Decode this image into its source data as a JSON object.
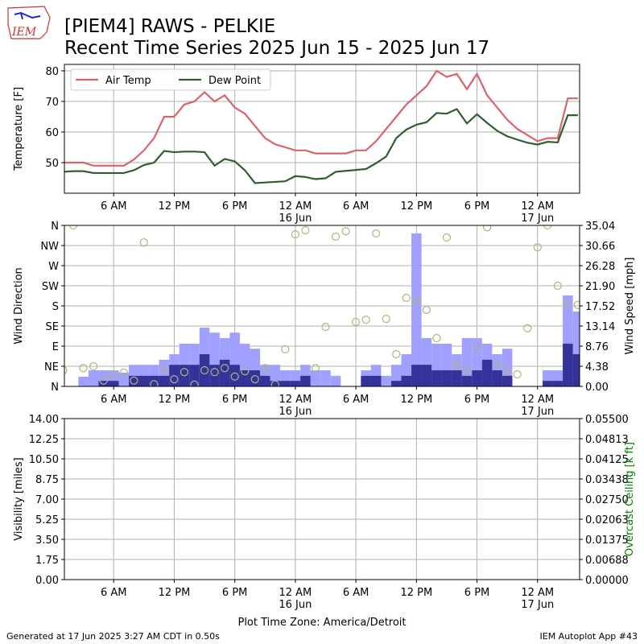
{
  "header": {
    "title": "[PIEM4] RAWS - PELKIE",
    "subtitle": "Recent Time Series 2025 Jun 15 - 2025 Jun 17",
    "logo_text": "IEM"
  },
  "footer": {
    "left": "Generated at 17 Jun 2025 3:27 AM CDT in 0.50s",
    "right": "IEM Autoplot App #43"
  },
  "chart_data": [
    {
      "type": "line",
      "ylabel": "Temperature [F]",
      "x": [
        "2025-06-15T01:00",
        "2025-06-15T02:00",
        "2025-06-15T03:00",
        "2025-06-15T04:00",
        "2025-06-15T05:00",
        "2025-06-15T06:00",
        "2025-06-15T07:00",
        "2025-06-15T08:00",
        "2025-06-15T09:00",
        "2025-06-15T10:00",
        "2025-06-15T11:00",
        "2025-06-15T12:00",
        "2025-06-15T13:00",
        "2025-06-15T14:00",
        "2025-06-15T15:00",
        "2025-06-15T16:00",
        "2025-06-15T17:00",
        "2025-06-15T18:00",
        "2025-06-15T19:00",
        "2025-06-15T20:00",
        "2025-06-15T21:00",
        "2025-06-15T22:00",
        "2025-06-15T23:00",
        "2025-06-16T00:00",
        "2025-06-16T01:00",
        "2025-06-16T02:00",
        "2025-06-16T03:00",
        "2025-06-16T04:00",
        "2025-06-16T05:00",
        "2025-06-16T06:00",
        "2025-06-16T07:00",
        "2025-06-16T08:00",
        "2025-06-16T09:00",
        "2025-06-16T10:00",
        "2025-06-16T11:00",
        "2025-06-16T12:00",
        "2025-06-16T13:00",
        "2025-06-16T14:00",
        "2025-06-16T15:00",
        "2025-06-16T16:00",
        "2025-06-16T17:00",
        "2025-06-16T18:00",
        "2025-06-16T19:00",
        "2025-06-16T20:00",
        "2025-06-16T21:00",
        "2025-06-16T22:00",
        "2025-06-16T23:00",
        "2025-06-17T00:00",
        "2025-06-17T01:00",
        "2025-06-17T02:00",
        "2025-06-17T03:00",
        "2025-06-17T04:00"
      ],
      "series": [
        {
          "name": "Air Temp",
          "color": "#d9636b",
          "values": [
            50,
            50,
            50,
            49,
            49,
            49,
            49,
            51,
            54,
            58,
            65,
            65,
            69,
            70,
            73,
            70,
            72,
            68,
            66,
            62,
            58,
            56,
            55,
            54,
            54,
            53,
            53,
            53,
            53,
            54,
            54,
            57,
            61,
            65,
            69,
            72,
            75,
            80,
            78,
            79,
            74,
            79,
            72,
            68,
            64,
            61,
            59,
            57,
            58,
            58,
            71,
            71
          ]
        },
        {
          "name": "Dew Point",
          "color": "#2f5e2f",
          "values": [
            47,
            47.2,
            47.2,
            46.6,
            46.6,
            46.6,
            46.6,
            47.5,
            49.2,
            50,
            53.8,
            53.4,
            53.6,
            53.6,
            53.4,
            49,
            51.2,
            50.4,
            47.5,
            43.3,
            43.5,
            43.7,
            43.9,
            45.6,
            45.3,
            44.6,
            44.9,
            47,
            47.3,
            47.6,
            47.9,
            49.8,
            52,
            58,
            60.8,
            62.4,
            63.2,
            66.2,
            66,
            67.5,
            62.8,
            65.8,
            63,
            60.4,
            58.6,
            57.5,
            56.5,
            55.9,
            56.8,
            56.6,
            65.5,
            65.5
          ]
        }
      ],
      "xlim": [
        "2025-06-15T01:07",
        "2025-06-17T04:10"
      ],
      "xticks": [
        {
          "value": "2025-06-15T06:00",
          "label": "6 AM"
        },
        {
          "value": "2025-06-15T12:00",
          "label": "12 PM"
        },
        {
          "value": "2025-06-15T18:00",
          "label": "6 PM"
        },
        {
          "value": "2025-06-16T00:00",
          "label": "12 AM\n16 Jun"
        },
        {
          "value": "2025-06-16T06:00",
          "label": "6 AM"
        },
        {
          "value": "2025-06-16T12:00",
          "label": "12 PM"
        },
        {
          "value": "2025-06-16T18:00",
          "label": "6 PM"
        },
        {
          "value": "2025-06-17T00:00",
          "label": "12 AM\n17 Jun"
        }
      ],
      "ylim": [
        40,
        82.1
      ],
      "yticks": [
        50,
        60,
        70,
        80
      ],
      "grid": true,
      "legend": "upper left"
    },
    {
      "type": "bar",
      "ylabel": "Wind Direction",
      "y2label": "Wind Speed [mph]",
      "x": [
        "2025-06-15T01:00",
        "2025-06-15T02:00",
        "2025-06-15T03:00",
        "2025-06-15T04:00",
        "2025-06-15T05:00",
        "2025-06-15T06:00",
        "2025-06-15T07:00",
        "2025-06-15T08:00",
        "2025-06-15T09:00",
        "2025-06-15T10:00",
        "2025-06-15T11:00",
        "2025-06-15T12:00",
        "2025-06-15T13:00",
        "2025-06-15T14:00",
        "2025-06-15T15:00",
        "2025-06-15T16:00",
        "2025-06-15T17:00",
        "2025-06-15T18:00",
        "2025-06-15T19:00",
        "2025-06-15T20:00",
        "2025-06-15T21:00",
        "2025-06-15T22:00",
        "2025-06-15T23:00",
        "2025-06-16T00:00",
        "2025-06-16T01:00",
        "2025-06-16T02:00",
        "2025-06-16T03:00",
        "2025-06-16T04:00",
        "2025-06-16T05:00",
        "2025-06-16T06:00",
        "2025-06-16T07:00",
        "2025-06-16T08:00",
        "2025-06-16T09:00",
        "2025-06-16T10:00",
        "2025-06-16T11:00",
        "2025-06-16T12:00",
        "2025-06-16T13:00",
        "2025-06-16T14:00",
        "2025-06-16T15:00",
        "2025-06-16T16:00",
        "2025-06-16T17:00",
        "2025-06-16T18:00",
        "2025-06-16T19:00",
        "2025-06-16T20:00",
        "2025-06-16T21:00",
        "2025-06-16T22:00",
        "2025-06-16T23:00",
        "2025-06-17T00:00",
        "2025-06-17T01:00",
        "2025-06-17T02:00",
        "2025-06-17T03:00",
        "2025-06-17T04:00"
      ],
      "series": [
        {
          "type": "bar",
          "axis": "y2",
          "color": "#a0a0ff",
          "values": [
            null,
            null,
            2.1,
            3.5,
            3.5,
            3.5,
            3.0,
            4.7,
            4.7,
            4.7,
            5.8,
            7.0,
            9.3,
            9.3,
            12.8,
            11.7,
            10.5,
            11.7,
            9.3,
            8.2,
            4.7,
            4.7,
            3.5,
            3.5,
            4.7,
            3.5,
            3.5,
            2.3,
            null,
            null,
            3.5,
            4.7,
            2.3,
            4.7,
            7.0,
            33.3,
            10.5,
            9.3,
            9.3,
            7.0,
            10.5,
            10.5,
            9.3,
            7.0,
            8.2,
            null,
            null,
            null,
            3.5,
            3.5,
            19.8,
            16.3
          ]
        },
        {
          "type": "bar",
          "axis": "y2",
          "color": "#33339a",
          "values": [
            null,
            null,
            0,
            0,
            1.2,
            1.2,
            0,
            2.3,
            2.3,
            2.3,
            2.3,
            4.7,
            4.7,
            4.7,
            7.0,
            4.7,
            5.8,
            4.7,
            3.5,
            3.5,
            2.3,
            1.2,
            1.2,
            1.2,
            2.3,
            0,
            0,
            0,
            null,
            null,
            2.3,
            2.3,
            0,
            1.2,
            2.3,
            4.7,
            4.7,
            3.5,
            3.5,
            3.5,
            2.3,
            3.5,
            5.8,
            3.5,
            2.3,
            null,
            null,
            null,
            1.2,
            1.2,
            9.3,
            7.0
          ]
        },
        {
          "type": "scatter",
          "color": "#b3b37a",
          "values": [
            36,
            360,
            41,
            45,
            13,
            27,
            31,
            13,
            322,
            5,
            36,
            16,
            32,
            4,
            36,
            32,
            41,
            22,
            34,
            16,
            41,
            4,
            83,
            340,
            349,
            41,
            133,
            335,
            347,
            144,
            149,
            342,
            151,
            72,
            198,
            192,
            171,
            108,
            333,
            47,
            36,
            85,
            356,
            50,
            36,
            27,
            130,
            311,
            360,
            225,
            184,
            182
          ]
        }
      ],
      "xlim": [
        "2025-06-15T01:07",
        "2025-06-17T04:10"
      ],
      "xticks": [
        {
          "value": "2025-06-15T06:00",
          "label": "6 AM"
        },
        {
          "value": "2025-06-15T12:00",
          "label": "12 PM"
        },
        {
          "value": "2025-06-15T18:00",
          "label": "6 PM"
        },
        {
          "value": "2025-06-16T00:00",
          "label": "12 AM\n16 Jun"
        },
        {
          "value": "2025-06-16T06:00",
          "label": "6 AM"
        },
        {
          "value": "2025-06-16T12:00",
          "label": "12 PM"
        },
        {
          "value": "2025-06-16T18:00",
          "label": "6 PM"
        },
        {
          "value": "2025-06-17T00:00",
          "label": "12 AM\n17 Jun"
        }
      ],
      "ylim": [
        0,
        360
      ],
      "yticks": [
        {
          "value": 0,
          "label": "N"
        },
        {
          "value": 45,
          "label": "NE"
        },
        {
          "value": 90,
          "label": "E"
        },
        {
          "value": 135,
          "label": "SE"
        },
        {
          "value": 180,
          "label": "S"
        },
        {
          "value": 225,
          "label": "SW"
        },
        {
          "value": 270,
          "label": "W"
        },
        {
          "value": 315,
          "label": "NW"
        },
        {
          "value": 360,
          "label": "N"
        }
      ],
      "y2lim": [
        0,
        35.04
      ],
      "y2ticks": [
        {
          "value": 0,
          "label": "0.00"
        },
        4.38,
        8.76,
        13.14,
        17.52,
        {
          "value": 21.9,
          "label": "21.90"
        },
        26.28,
        30.66,
        35.04
      ],
      "grid": true
    },
    {
      "type": "line",
      "ylabel": "Visibility [miles]",
      "y2label": "Overcast Ceiling [k ft]",
      "y2label_color": "green",
      "xlabel": "Plot Time Zone: America/Detroit",
      "series": [],
      "xlim": [
        "2025-06-15T01:07",
        "2025-06-17T04:10"
      ],
      "xticks": [
        {
          "value": "2025-06-15T06:00",
          "label": "6 AM"
        },
        {
          "value": "2025-06-15T12:00",
          "label": "12 PM"
        },
        {
          "value": "2025-06-15T18:00",
          "label": "6 PM"
        },
        {
          "value": "2025-06-16T00:00",
          "label": "12 AM\n16 Jun"
        },
        {
          "value": "2025-06-16T06:00",
          "label": "6 AM"
        },
        {
          "value": "2025-06-16T12:00",
          "label": "12 PM"
        },
        {
          "value": "2025-06-16T18:00",
          "label": "6 PM"
        },
        {
          "value": "2025-06-17T00:00",
          "label": "12 AM\n17 Jun"
        }
      ],
      "ylim": [
        0,
        14
      ],
      "yticks": [
        {
          "value": 0,
          "label": "0.00"
        },
        1.75,
        {
          "value": 3.5,
          "label": "3.50"
        },
        5.25,
        {
          "value": 7,
          "label": "7.00"
        },
        8.75,
        {
          "value": 10.5,
          "label": "10.50"
        },
        12.25,
        {
          "value": 14,
          "label": "14.00"
        }
      ],
      "y2lim": [
        0,
        0.055
      ],
      "y2ticks": [
        {
          "value": 0,
          "label": "0.00000"
        },
        {
          "value": 0.006875,
          "label": "0.00688"
        },
        {
          "value": 0.01375,
          "label": "0.01375"
        },
        {
          "value": 0.020625,
          "label": "0.02063"
        },
        {
          "value": 0.0275,
          "label": "0.02750"
        },
        {
          "value": 0.034375,
          "label": "0.03438"
        },
        {
          "value": 0.04125,
          "label": "0.04125"
        },
        {
          "value": 0.048125,
          "label": "0.04813"
        },
        {
          "value": 0.055,
          "label": "0.05500"
        }
      ],
      "grid": true
    }
  ]
}
